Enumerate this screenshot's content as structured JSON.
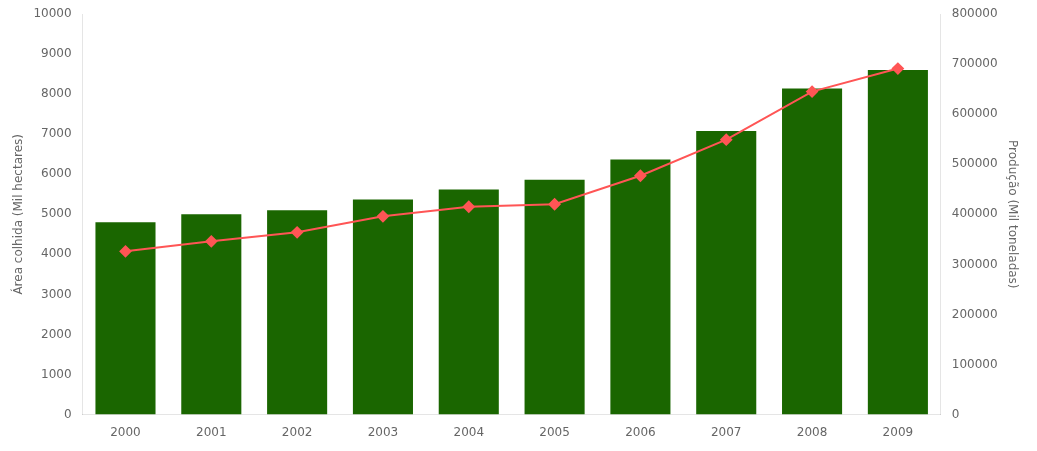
{
  "chart_data": {
    "type": "bar",
    "categories": [
      "2000",
      "2001",
      "2002",
      "2003",
      "2004",
      "2005",
      "2006",
      "2007",
      "2008",
      "2009"
    ],
    "ylabel": "Área colhida (Mil hectares)",
    "y2label": "Produção (Mil toneladas)",
    "series": [
      {
        "type": "bar",
        "color": "#1a6600",
        "values": [
          4800,
          5000,
          5100,
          5370,
          5620,
          5860,
          6370,
          7080,
          8140,
          8600
        ]
      },
      {
        "type": "line",
        "color": "#ff5555",
        "marker": "diamond",
        "axis": "y2",
        "values": [
          326000,
          346000,
          364000,
          396000,
          415000,
          420000,
          477000,
          549000,
          645000,
          691000
        ]
      }
    ],
    "ylim": [
      0,
      10000
    ],
    "yticks": [
      0,
      1000,
      2000,
      3000,
      4000,
      5000,
      6000,
      7000,
      8000,
      9000,
      10000
    ],
    "y2lim": [
      0,
      800000
    ],
    "y2ticks": [
      0,
      100000,
      200000,
      300000,
      400000,
      500000,
      600000,
      700000,
      800000
    ],
    "grid": false
  }
}
